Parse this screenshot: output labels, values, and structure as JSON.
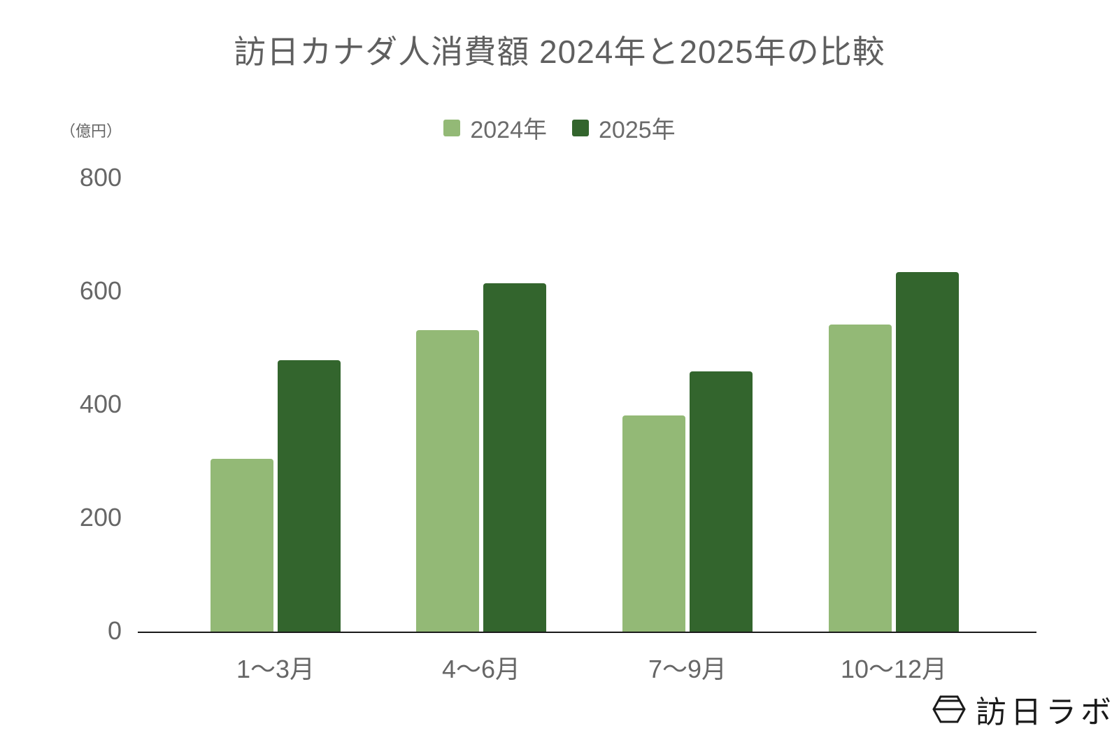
{
  "chart_data": {
    "type": "bar",
    "title": "訪日カナダ人消費額 2024年と2025年の比較",
    "xlabel": "",
    "ylabel": "（億円）",
    "ylim": [
      0,
      800
    ],
    "yticks": [
      0,
      200,
      400,
      600,
      800
    ],
    "grid": false,
    "legend_position": "top",
    "categories": [
      "1〜3月",
      "4〜6月",
      "7〜9月",
      "10〜12月"
    ],
    "series": [
      {
        "name": "2024年",
        "color": "#93b976",
        "values": [
          305,
          532,
          381,
          542
        ]
      },
      {
        "name": "2025年",
        "color": "#33652d",
        "values": [
          479,
          615,
          459,
          635
        ]
      }
    ]
  },
  "title": "訪日カナダ人消費額 2024年と2025年の比較",
  "unit_label": "（億円）",
  "legend": [
    {
      "label": "2024年",
      "color": "#93b976"
    },
    {
      "label": "2025年",
      "color": "#33652d"
    }
  ],
  "y_ticks": [
    "800",
    "600",
    "400",
    "200",
    "0"
  ],
  "x_labels": [
    "1〜3月",
    "4〜6月",
    "7〜9月",
    "10〜12月"
  ],
  "logo": {
    "text": "訪日ラボ",
    "icon": "hexagon-logo-icon"
  }
}
